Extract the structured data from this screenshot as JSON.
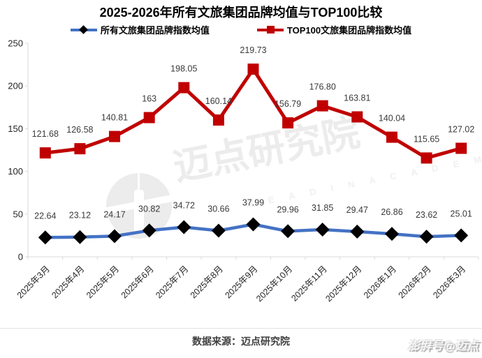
{
  "title": "2025-2026年所有文旅集团品牌均值与TOP100比较",
  "colors": {
    "all_series_line": "#4472C4",
    "all_series_marker": "#000000",
    "top100_series": "#C00000",
    "axis": "#D9D9D9",
    "label_text": "#3a3a3a",
    "axis_text": "#262626"
  },
  "legend": {
    "items": [
      {
        "label": "所有文旅集团品牌指数均值"
      },
      {
        "label": "TOP100文旅集团品牌指数均值"
      }
    ]
  },
  "chart_data": {
    "type": "line",
    "title": "2025-2026年所有文旅集团品牌均值与TOP100比较",
    "categories": [
      "2025年3月",
      "2025年4月",
      "2025年5月",
      "2025年6月",
      "2025年7月",
      "2025年8月",
      "2025年9月",
      "2025年10月",
      "2025年11月",
      "2025年12月",
      "2026年1月",
      "2026年2月",
      "2026年3月"
    ],
    "series": [
      {
        "name": "所有文旅集团品牌指数均值",
        "marker": "diamond",
        "line_color": "#4472C4",
        "marker_color": "#000000",
        "values": [
          22.64,
          23.12,
          24.17,
          30.82,
          34.72,
          30.66,
          37.99,
          29.96,
          31.85,
          29.47,
          26.86,
          23.62,
          25.01
        ],
        "labels": [
          "22.64",
          "23.12",
          "24.17",
          "30.82",
          "34.72",
          "30.66",
          "37.99",
          "29.96",
          "31.85",
          "29.47",
          "26.86",
          "23.62",
          "25.01"
        ]
      },
      {
        "name": "TOP100文旅集团品牌指数均值",
        "marker": "square",
        "line_color": "#C00000",
        "marker_color": "#C00000",
        "values": [
          121.68,
          126.58,
          140.81,
          163,
          198.05,
          160.14,
          219.73,
          156.79,
          176.8,
          163.81,
          140.04,
          115.65,
          127.02
        ],
        "labels": [
          "121.68",
          "126.58",
          "140.81",
          "163",
          "198.05",
          "160.14",
          "219.73",
          "156.79",
          "176.80",
          "163.81",
          "140.04",
          "115.65",
          "127.02"
        ]
      }
    ],
    "ylim": [
      0,
      250
    ],
    "yticks": [
      0,
      50,
      100,
      150,
      200,
      250
    ],
    "grid": false,
    "legend_position": "top",
    "xlabel": "",
    "ylabel": ""
  },
  "watermark": {
    "logo": "tower-in-circle",
    "text": "迈点研究院",
    "subtext": "M E A D I N  A C A D E M Y"
  },
  "footer": {
    "source": "数据来源：迈点研究院",
    "badge": "澎湃号@迈点"
  }
}
